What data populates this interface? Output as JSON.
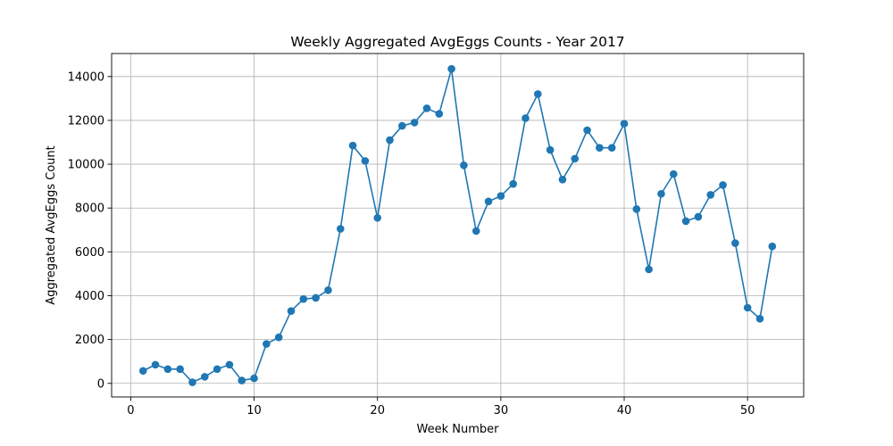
{
  "chart_data": {
    "type": "line",
    "title": "Weekly Aggregated AvgEggs Counts - Year 2017",
    "xlabel": "Week Number",
    "ylabel": "Aggregated AvgEggs Count",
    "xlim": [
      -1.55,
      54.55
    ],
    "ylim": [
      -620,
      15050
    ],
    "xticks": [
      0,
      10,
      20,
      30,
      40,
      50
    ],
    "yticks": [
      0,
      2000,
      4000,
      6000,
      8000,
      10000,
      12000,
      14000
    ],
    "grid": true,
    "marker": "circle",
    "color": "#1f77b4",
    "series": [
      {
        "x": [
          1,
          2,
          3,
          4,
          5,
          6,
          7,
          8,
          9,
          10,
          11,
          12,
          13,
          14,
          15,
          16,
          17,
          18,
          19,
          20,
          21,
          22,
          23,
          24,
          25,
          26,
          27,
          28,
          29,
          30,
          31,
          32,
          33,
          34,
          35,
          36,
          37,
          38,
          39,
          40,
          41,
          42,
          43,
          44,
          45,
          46,
          47,
          48,
          49,
          50,
          51,
          52
        ],
        "values": [
          570,
          850,
          650,
          650,
          50,
          300,
          650,
          850,
          130,
          230,
          1800,
          2100,
          3300,
          3850,
          3900,
          4250,
          7050,
          10850,
          10150,
          7550,
          11100,
          11750,
          11900,
          12550,
          12300,
          14350,
          9950,
          6950,
          8300,
          8550,
          9100,
          12100,
          13200,
          10650,
          9300,
          10250,
          11550,
          10750,
          10750,
          11850,
          7950,
          5200,
          8650,
          9550,
          7400,
          7600,
          8600,
          9050,
          6400,
          3450,
          2950,
          6250
        ]
      }
    ]
  }
}
